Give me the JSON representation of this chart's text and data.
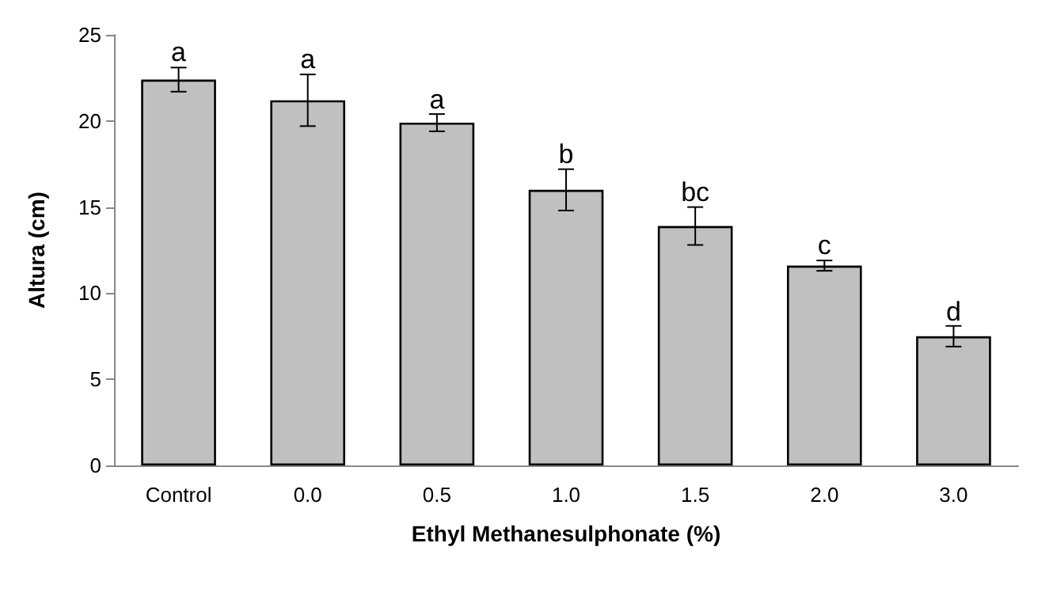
{
  "chart_data": {
    "type": "bar",
    "xlabel": "Ethyl Methanesulphonate (%)",
    "ylabel": "Altura (cm)",
    "categories": [
      "Control",
      "0.0",
      "0.5",
      "1.0",
      "1.5",
      "2.0",
      "3.0"
    ],
    "values": [
      22.4,
      21.2,
      19.9,
      16.0,
      13.9,
      11.6,
      7.5
    ],
    "errors": [
      0.7,
      1.5,
      0.5,
      1.2,
      1.1,
      0.3,
      0.6
    ],
    "color": "#c0c0c0",
    "ylim": [
      0,
      25
    ],
    "yticks": [
      0,
      5,
      10,
      15,
      20,
      25
    ],
    "grid": false,
    "annotations": [
      {
        "text": "a",
        "x": "Control",
        "y": 23.1
      },
      {
        "text": "a",
        "x": "0.0",
        "y": 22.7
      },
      {
        "text": "a",
        "x": "0.5",
        "y": 20.35
      },
      {
        "text": "b",
        "x": "1.0",
        "y": 17.2
      },
      {
        "text": "bc",
        "x": "1.5",
        "y": 15.0
      },
      {
        "text": "c",
        "x": "2.0",
        "y": 11.9
      },
      {
        "text": "d",
        "x": "3.0",
        "y": 8.05
      }
    ]
  }
}
